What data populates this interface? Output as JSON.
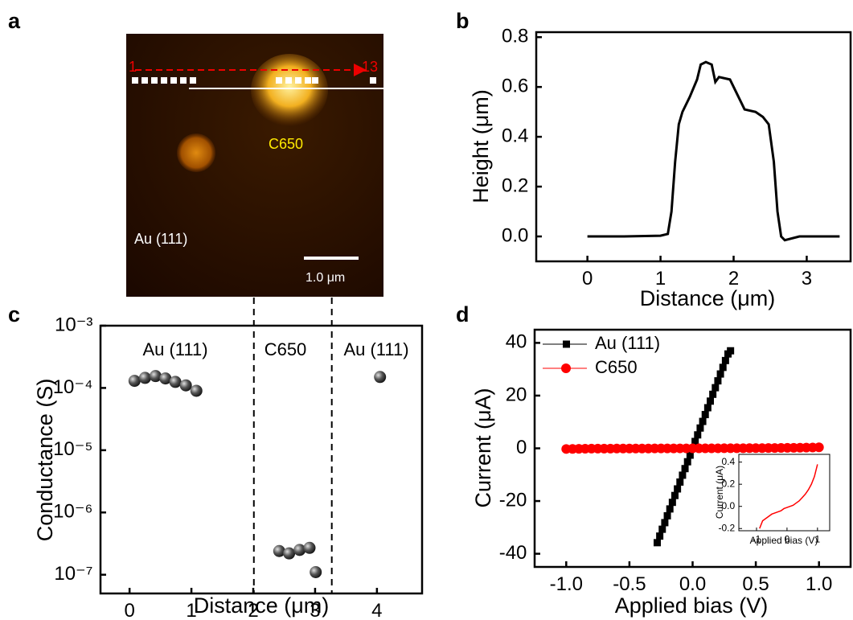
{
  "image_panel": {
    "panel": "a",
    "start_label": "1",
    "end_label": "13",
    "particle_label": "C650",
    "substrate_label": "Au (111)",
    "scale_bar": "1.0 μm"
  },
  "chart_data": [
    {
      "type": "line",
      "panel": "b",
      "xlabel": "Distance (μm)",
      "ylabel": "Height (μm)",
      "color": "#000000",
      "x": [
        0,
        0.5,
        1.0,
        1.1,
        1.15,
        1.2,
        1.25,
        1.3,
        1.4,
        1.5,
        1.55,
        1.62,
        1.7,
        1.75,
        1.8,
        1.95,
        2.05,
        2.15,
        2.3,
        2.4,
        2.48,
        2.55,
        2.6,
        2.65,
        2.7,
        2.9,
        3.45
      ],
      "values": [
        0,
        0,
        0.003,
        0.01,
        0.1,
        0.3,
        0.45,
        0.5,
        0.56,
        0.63,
        0.69,
        0.7,
        0.69,
        0.62,
        0.64,
        0.63,
        0.57,
        0.51,
        0.5,
        0.48,
        0.45,
        0.3,
        0.1,
        0.0,
        -0.015,
        0.0,
        0.0
      ],
      "xlim": [
        -0.7,
        3.6
      ],
      "xticks": [
        0,
        1,
        2,
        3
      ],
      "ylim": [
        -0.1,
        0.82
      ],
      "yticks": [
        {
          "value": 0,
          "label": "0.0"
        },
        0.2,
        0.4,
        0.6,
        0.8
      ]
    },
    {
      "type": "scatter",
      "panel": "c",
      "xlabel": "Distance (μm)",
      "ylabel": "Conductance (S)",
      "color": "#333333",
      "log_y": true,
      "x": [
        0.08,
        0.25,
        0.42,
        0.58,
        0.74,
        0.91,
        1.08,
        2.42,
        2.58,
        2.75,
        2.91,
        3.01,
        4.05
      ],
      "values": [
        0.00013,
        0.000145,
        0.000155,
        0.000142,
        0.000125,
        0.00011,
        9e-05,
        2.4e-07,
        2.2e-07,
        2.5e-07,
        2.7e-07,
        1.1e-07,
        0.00015
      ],
      "xlim": [
        -0.47,
        4.73
      ],
      "xticks": [
        0,
        1,
        2,
        3,
        4
      ],
      "ylim": [
        5e-08,
        0.001
      ],
      "yticks": [
        {
          "value": 0.001,
          "label": "10⁻³"
        },
        {
          "value": 0.0001,
          "label": "10⁻⁴"
        },
        {
          "value": 1e-05,
          "label": "10⁻⁵"
        },
        {
          "value": 1e-06,
          "label": "10⁻⁶"
        },
        {
          "value": 1e-07,
          "label": "10⁻⁷"
        }
      ],
      "vlines": [
        2.01,
        3.27
      ],
      "annotations": [
        "Au (111)",
        "C650",
        "Au (111)"
      ]
    },
    {
      "type": "scatter",
      "panel": "d",
      "xlabel": "Applied bias (V)",
      "ylabel": "Current (μA)",
      "xlim": [
        -1.25,
        1.25
      ],
      "xticks": [
        {
          "value": -1,
          "label": "-1.0"
        },
        -0.5,
        {
          "value": 0,
          "label": "0.0"
        },
        0.5,
        {
          "value": 1,
          "label": "1.0"
        }
      ],
      "ylim": [
        -45,
        45
      ],
      "yticks": [
        -40,
        -20,
        0,
        20,
        40
      ],
      "series": [
        {
          "name": "Au (111)",
          "color": "#000000",
          "marker": "square",
          "x": [
            -0.28,
            -0.26,
            -0.24,
            -0.22,
            -0.2,
            -0.18,
            -0.16,
            -0.14,
            -0.12,
            -0.1,
            -0.08,
            -0.06,
            -0.04,
            -0.02,
            0,
            0.02,
            0.04,
            0.06,
            0.08,
            0.1,
            0.12,
            0.14,
            0.16,
            0.18,
            0.2,
            0.22,
            0.24,
            0.26,
            0.28,
            0.3
          ],
          "values": [
            -35.8,
            -33.3,
            -30.7,
            -28.2,
            -25.6,
            -23.0,
            -20.5,
            -17.9,
            -15.4,
            -12.8,
            -10.2,
            -7.7,
            -5.1,
            -2.6,
            0,
            2.6,
            5.1,
            7.7,
            10.2,
            12.8,
            15.4,
            17.9,
            20.5,
            23.0,
            25.6,
            28.2,
            30.7,
            33.3,
            35.8,
            37.0
          ]
        },
        {
          "name": "C650",
          "color": "#ff0000",
          "marker": "circle",
          "x": [
            -1,
            -0.95,
            -0.9,
            -0.85,
            -0.8,
            -0.75,
            -0.7,
            -0.65,
            -0.6,
            -0.55,
            -0.5,
            -0.45,
            -0.4,
            -0.35,
            -0.3,
            -0.25,
            -0.2,
            -0.15,
            -0.1,
            -0.05,
            0,
            0.05,
            0.1,
            0.15,
            0.2,
            0.25,
            0.3,
            0.35,
            0.4,
            0.45,
            0.5,
            0.55,
            0.6,
            0.65,
            0.7,
            0.75,
            0.8,
            0.85,
            0.9,
            0.95,
            1
          ],
          "values": [
            -0.25,
            -0.22,
            -0.2,
            -0.16,
            -0.13,
            -0.12,
            -0.11,
            -0.1,
            -0.09,
            -0.08,
            -0.07,
            -0.07,
            -0.06,
            -0.06,
            -0.05,
            -0.05,
            -0.04,
            -0.03,
            -0.02,
            -0.02,
            -0.01,
            0,
            0,
            0.01,
            0.01,
            0.02,
            0.03,
            0.04,
            0.05,
            0.06,
            0.08,
            0.09,
            0.11,
            0.13,
            0.15,
            0.18,
            0.2,
            0.23,
            0.27,
            0.32,
            0.38
          ]
        }
      ]
    },
    {
      "type": "line",
      "xlabel": "Applied bias (V)",
      "ylabel": "Current (μA)",
      "color": "#ff0000",
      "x": [
        -0.9,
        -0.8,
        -0.7,
        -0.6,
        -0.5,
        -0.4,
        -0.3,
        -0.2,
        -0.1,
        0,
        0.1,
        0.2,
        0.3,
        0.4,
        0.5,
        0.6,
        0.7,
        0.8,
        0.9,
        1.0
      ],
      "values": [
        -0.2,
        -0.13,
        -0.11,
        -0.09,
        -0.07,
        -0.06,
        -0.05,
        -0.04,
        -0.02,
        -0.01,
        0,
        0.01,
        0.03,
        0.05,
        0.08,
        0.11,
        0.15,
        0.2,
        0.27,
        0.38
      ],
      "xlim": [
        -1.58,
        1.4
      ],
      "xticks": [
        -1,
        0,
        1
      ],
      "ylim": [
        -0.22,
        0.47
      ],
      "yticks": [
        {
          "value": -0.2,
          "label": "-0.2"
        },
        {
          "value": 0,
          "label": "0.0"
        },
        0.2,
        0.4
      ]
    }
  ]
}
